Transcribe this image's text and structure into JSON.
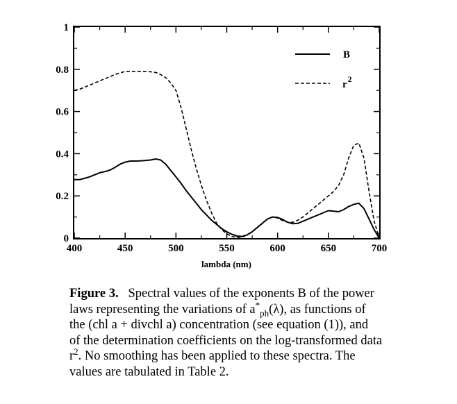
{
  "chart_data": {
    "type": "line",
    "title": "",
    "xlabel": "lambda (nm)",
    "ylabel": "",
    "xlim": [
      400,
      700
    ],
    "ylim": [
      0,
      1
    ],
    "xticks": [
      400,
      450,
      500,
      550,
      600,
      650,
      700
    ],
    "xtick_labels": [
      "400",
      "450",
      "500",
      "550",
      "600",
      "650",
      "700"
    ],
    "yticks": [
      0,
      0.2,
      0.4,
      0.6,
      0.8,
      1
    ],
    "ytick_labels": [
      "0",
      "0.2",
      "0.4",
      "0.6",
      "0.8",
      "1"
    ],
    "legend_position": "top-right",
    "series": [
      {
        "name": "B",
        "style": "solid",
        "x": [
          400,
          405,
          410,
          415,
          420,
          425,
          430,
          435,
          440,
          445,
          450,
          455,
          460,
          465,
          470,
          475,
          480,
          485,
          490,
          495,
          500,
          505,
          510,
          515,
          520,
          525,
          530,
          535,
          540,
          545,
          550,
          555,
          560,
          565,
          570,
          575,
          580,
          585,
          590,
          595,
          600,
          605,
          610,
          615,
          620,
          625,
          630,
          635,
          640,
          645,
          650,
          655,
          660,
          665,
          670,
          675,
          680,
          685,
          690,
          695,
          700
        ],
        "values": [
          0.277,
          0.277,
          0.283,
          0.29,
          0.3,
          0.31,
          0.315,
          0.322,
          0.335,
          0.35,
          0.36,
          0.365,
          0.365,
          0.366,
          0.368,
          0.37,
          0.375,
          0.37,
          0.35,
          0.32,
          0.29,
          0.26,
          0.225,
          0.195,
          0.165,
          0.135,
          0.11,
          0.085,
          0.065,
          0.045,
          0.03,
          0.018,
          0.01,
          0.008,
          0.015,
          0.03,
          0.05,
          0.07,
          0.09,
          0.1,
          0.098,
          0.088,
          0.075,
          0.068,
          0.07,
          0.08,
          0.09,
          0.1,
          0.11,
          0.12,
          0.13,
          0.128,
          0.125,
          0.135,
          0.15,
          0.16,
          0.165,
          0.14,
          0.09,
          0.04,
          0.0
        ]
      },
      {
        "name": "r^2",
        "style": "dashed",
        "x": [
          400,
          405,
          410,
          415,
          420,
          425,
          430,
          435,
          440,
          445,
          450,
          455,
          460,
          465,
          470,
          475,
          480,
          485,
          490,
          495,
          500,
          505,
          510,
          515,
          520,
          525,
          530,
          535,
          540,
          545,
          550,
          555,
          560,
          565,
          570,
          575,
          580,
          585,
          590,
          595,
          600,
          605,
          610,
          615,
          620,
          625,
          630,
          635,
          640,
          645,
          650,
          655,
          660,
          665,
          670,
          675,
          680,
          685,
          690,
          695,
          700
        ],
        "values": [
          0.7,
          0.705,
          0.715,
          0.725,
          0.735,
          0.745,
          0.755,
          0.765,
          0.775,
          0.783,
          0.79,
          0.79,
          0.79,
          0.79,
          0.79,
          0.788,
          0.785,
          0.775,
          0.76,
          0.735,
          0.7,
          0.62,
          0.52,
          0.42,
          0.33,
          0.25,
          0.18,
          0.12,
          0.07,
          0.04,
          0.02,
          0.008,
          0.003,
          0.004,
          0.015,
          0.03,
          0.05,
          0.07,
          0.09,
          0.1,
          0.095,
          0.083,
          0.075,
          0.075,
          0.085,
          0.1,
          0.12,
          0.14,
          0.16,
          0.18,
          0.2,
          0.22,
          0.25,
          0.3,
          0.38,
          0.44,
          0.45,
          0.38,
          0.22,
          0.08,
          0.0
        ]
      }
    ],
    "legend": [
      {
        "label": "B",
        "style": "solid"
      },
      {
        "label": "r",
        "sup": "2",
        "style": "dashed"
      }
    ]
  },
  "caption": {
    "label": "Figure 3.",
    "line1": "Spectral values of the exponents B of the power",
    "line2_pre": "laws representing the variations of a",
    "line2_sup": "*",
    "line2_sub": "ph",
    "line2_post": "(λ), as functions of",
    "line3": "the (chl a + divchl a) concentration (see equation (1)), and",
    "line4": "of the determination coefficients on the log-transformed data",
    "line5_pre": "r",
    "line5_sup": "2",
    "line5_post": ". No smoothing has been applied to these spectra. The",
    "line6": "values are tabulated in Table 2."
  }
}
